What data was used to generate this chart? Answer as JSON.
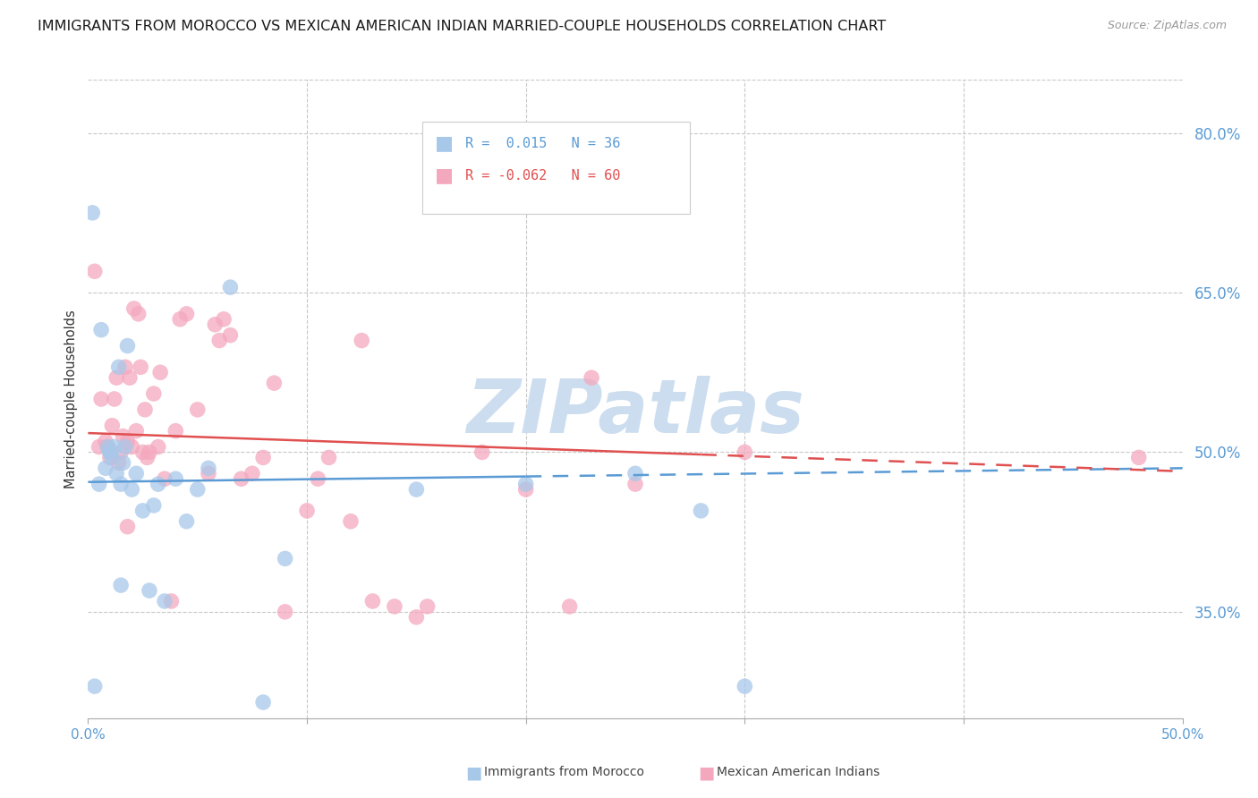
{
  "title": "IMMIGRANTS FROM MOROCCO VS MEXICAN AMERICAN INDIAN MARRIED-COUPLE HOUSEHOLDS CORRELATION CHART",
  "source": "Source: ZipAtlas.com",
  "ylabel": "Married-couple Households",
  "yticks": [
    35.0,
    50.0,
    65.0,
    80.0
  ],
  "ytick_labels": [
    "35.0%",
    "50.0%",
    "65.0%",
    "80.0%"
  ],
  "xmin": 0.0,
  "xmax": 50.0,
  "ymin": 25.0,
  "ymax": 85.0,
  "watermark": "ZIPatlas",
  "blue_dots_x": [
    0.2,
    0.3,
    0.5,
    0.8,
    0.9,
    1.0,
    1.0,
    1.1,
    1.2,
    1.3,
    1.4,
    1.5,
    1.5,
    1.6,
    1.7,
    1.8,
    2.0,
    2.2,
    2.5,
    2.8,
    3.0,
    3.2,
    3.5,
    4.0,
    4.5,
    5.0,
    5.5,
    6.5,
    8.0,
    9.0,
    15.0,
    20.0,
    25.0,
    28.0,
    30.0,
    0.6
  ],
  "blue_dots_y": [
    72.5,
    28.0,
    47.0,
    48.5,
    50.5,
    50.0,
    50.0,
    49.5,
    50.5,
    48.0,
    58.0,
    47.0,
    37.5,
    49.0,
    50.5,
    60.0,
    46.5,
    48.0,
    44.5,
    37.0,
    45.0,
    47.0,
    36.0,
    47.5,
    43.5,
    46.5,
    48.5,
    65.5,
    26.5,
    40.0,
    46.5,
    47.0,
    48.0,
    44.5,
    28.0,
    61.5
  ],
  "pink_dots_x": [
    0.3,
    0.5,
    0.6,
    0.8,
    0.9,
    1.0,
    1.1,
    1.2,
    1.3,
    1.4,
    1.5,
    1.6,
    1.7,
    1.8,
    1.8,
    1.9,
    2.0,
    2.1,
    2.2,
    2.3,
    2.4,
    2.5,
    2.6,
    2.7,
    2.8,
    3.0,
    3.2,
    3.3,
    3.5,
    3.8,
    4.0,
    4.2,
    4.5,
    5.0,
    5.5,
    5.8,
    6.0,
    6.2,
    6.5,
    7.0,
    7.5,
    8.0,
    8.5,
    9.0,
    10.0,
    10.5,
    11.0,
    12.0,
    12.5,
    13.0,
    14.0,
    15.0,
    15.5,
    18.0,
    20.0,
    22.0,
    23.0,
    25.0,
    30.0,
    48.0
  ],
  "pink_dots_y": [
    67.0,
    50.5,
    55.0,
    51.0,
    50.5,
    49.5,
    52.5,
    55.0,
    57.0,
    49.0,
    50.0,
    51.5,
    58.0,
    51.0,
    43.0,
    57.0,
    50.5,
    63.5,
    52.0,
    63.0,
    58.0,
    50.0,
    54.0,
    49.5,
    50.0,
    55.5,
    50.5,
    57.5,
    47.5,
    36.0,
    52.0,
    62.5,
    63.0,
    54.0,
    48.0,
    62.0,
    60.5,
    62.5,
    61.0,
    47.5,
    48.0,
    49.5,
    56.5,
    35.0,
    44.5,
    47.5,
    49.5,
    43.5,
    60.5,
    36.0,
    35.5,
    34.5,
    35.5,
    50.0,
    46.5,
    35.5,
    57.0,
    47.0,
    50.0,
    49.5
  ],
  "blue_line_color": "#5b9bd5",
  "pink_line_color": "#e05050",
  "blue_dot_color": "#a8c8ea",
  "pink_dot_color": "#f4a8be",
  "dot_size": 160,
  "dot_alpha": 0.75,
  "grid_color": "#c8c8c8",
  "ytick_color": "#5b9bd5",
  "xtick_color": "#5b9bd5",
  "background_color": "#ffffff",
  "title_fontsize": 11.5,
  "source_fontsize": 9,
  "ylabel_fontsize": 10.5,
  "watermark_color": "#ccddef",
  "watermark_fontsize": 60,
  "blue_line_solid_end_x": 20.0,
  "pink_line_solid_end_x": 28.0,
  "blue_line_y_at_0": 47.2,
  "blue_line_y_at_50": 48.5,
  "pink_line_y_at_0": 51.8,
  "pink_line_y_at_50": 48.2
}
